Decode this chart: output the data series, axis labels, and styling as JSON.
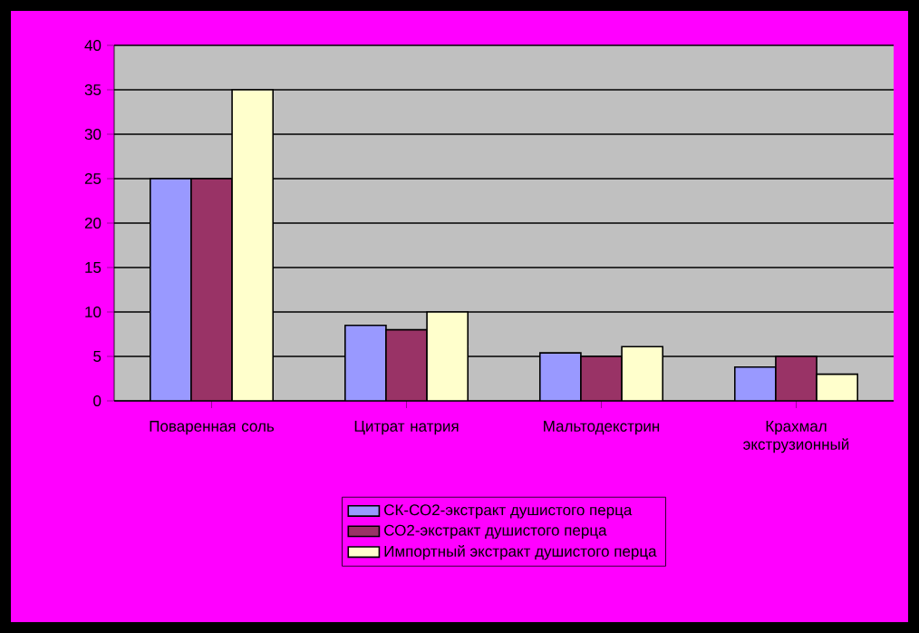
{
  "chart_data": {
    "type": "bar",
    "categories": [
      "Поваренная соль",
      "Цитрат натрия",
      "Мальтодекстрин",
      "Крахмал экструзионный"
    ],
    "series": [
      {
        "name": "СК-СО2-экстракт душистого перца",
        "color": "#9999ff",
        "values": [
          25,
          8.5,
          5.4,
          3.8
        ]
      },
      {
        "name": "СО2-экстракт душистого перца",
        "color": "#993366",
        "values": [
          25,
          8,
          5,
          5
        ]
      },
      {
        "name": "Импортный экстракт душистого перца",
        "color": "#ffffcc",
        "values": [
          35,
          10,
          6.1,
          3
        ]
      }
    ],
    "ylim": [
      0,
      40
    ],
    "yticks": [
      0,
      5,
      10,
      15,
      20,
      25,
      30,
      35,
      40
    ],
    "grid": "y",
    "legend": "bottom"
  }
}
